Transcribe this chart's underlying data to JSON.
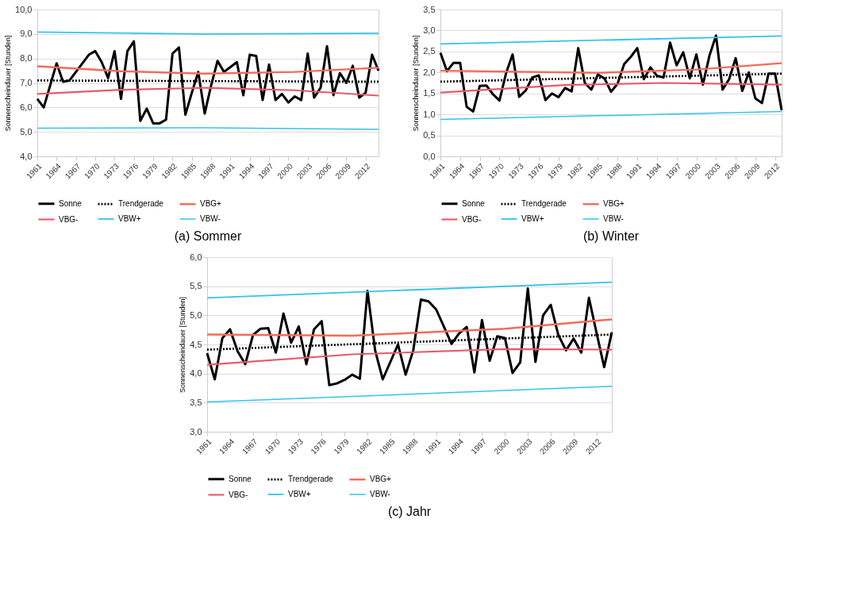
{
  "chart_data": [
    {
      "type": "line",
      "title": "(a) Sommer",
      "ylabel": "Sonnenscheindauer [Stunden]",
      "grid": "y",
      "legend": "bottom",
      "x": [
        1961,
        1962,
        1963,
        1964,
        1965,
        1966,
        1967,
        1968,
        1969,
        1970,
        1971,
        1972,
        1973,
        1974,
        1975,
        1976,
        1977,
        1978,
        1979,
        1980,
        1981,
        1982,
        1983,
        1984,
        1985,
        1986,
        1987,
        1988,
        1989,
        1990,
        1991,
        1992,
        1993,
        1994,
        1995,
        1996,
        1997,
        1998,
        1999,
        2000,
        2001,
        2002,
        2003,
        2004,
        2005,
        2006,
        2007,
        2008,
        2009,
        2010,
        2011,
        2012,
        2013,
        2014
      ],
      "xlim": [
        1961,
        2014
      ],
      "xticks": [
        1961,
        1964,
        1967,
        1970,
        1973,
        1976,
        1979,
        1982,
        1985,
        1988,
        1991,
        1994,
        1997,
        2000,
        2003,
        2006,
        2009,
        2012
      ],
      "ylim": [
        4,
        10
      ],
      "yticks": [
        {
          "value": 4,
          "label": "4,0"
        },
        {
          "value": 5,
          "label": "5,0"
        },
        {
          "value": 6,
          "label": "6,0"
        },
        {
          "value": 7,
          "label": "7,0"
        },
        {
          "value": 8,
          "label": "8,0"
        },
        {
          "value": 9,
          "label": "9,0"
        },
        {
          "value": 10,
          "label": "10,0"
        }
      ],
      "series": [
        {
          "name": "Sonne",
          "color": "#000000",
          "line_style": "solid",
          "values": [
            6.35,
            6.0,
            6.9,
            7.8,
            7.05,
            7.1,
            7.45,
            7.8,
            8.15,
            8.3,
            7.85,
            7.2,
            8.3,
            6.35,
            8.3,
            8.7,
            5.45,
            5.95,
            5.35,
            5.35,
            5.5,
            8.2,
            8.45,
            5.7,
            6.6,
            7.45,
            5.75,
            6.9,
            7.9,
            7.45,
            7.65,
            7.85,
            6.5,
            8.15,
            8.1,
            6.3,
            7.75,
            6.3,
            6.55,
            6.2,
            6.45,
            6.3,
            8.2,
            6.4,
            6.8,
            8.5,
            6.5,
            7.4,
            7.0,
            7.7,
            6.4,
            6.6,
            8.15,
            7.5
          ]
        },
        {
          "name": "Trendgerade",
          "color": "#000000",
          "line_style": "dotted",
          "x": [
            1961,
            2014
          ],
          "values": [
            7.1,
            7.05
          ]
        },
        {
          "name": "VBG+",
          "color": "#f26b5b",
          "line_style": "solid",
          "x": [
            1961,
            1974,
            1987,
            2001,
            2014
          ],
          "values": [
            7.68,
            7.48,
            7.38,
            7.45,
            7.62
          ]
        },
        {
          "name": "VBG-",
          "color": "#e65a6b",
          "line_style": "solid",
          "x": [
            1961,
            1974,
            1987,
            2001,
            2014
          ],
          "values": [
            6.55,
            6.72,
            6.8,
            6.7,
            6.48
          ]
        },
        {
          "name": "VBW+",
          "color": "#33c4e8",
          "line_style": "solid",
          "x": [
            1961,
            1987,
            2014
          ],
          "values": [
            9.08,
            9.0,
            9.03
          ]
        },
        {
          "name": "VBW-",
          "color": "#33c4e8",
          "line_style": "solid",
          "x": [
            1961,
            1987,
            2014
          ],
          "values": [
            5.15,
            5.17,
            5.1
          ]
        }
      ]
    },
    {
      "type": "line",
      "title": "(b) Winter",
      "ylabel": "Sonnenscheindauer [Stunden]",
      "grid": "y",
      "legend": "bottom",
      "x": [
        1961,
        1962,
        1963,
        1964,
        1965,
        1966,
        1967,
        1968,
        1969,
        1970,
        1971,
        1972,
        1973,
        1974,
        1975,
        1976,
        1977,
        1978,
        1979,
        1980,
        1981,
        1982,
        1983,
        1984,
        1985,
        1986,
        1987,
        1988,
        1989,
        1990,
        1991,
        1992,
        1993,
        1994,
        1995,
        1996,
        1997,
        1998,
        1999,
        2000,
        2001,
        2002,
        2003,
        2004,
        2005,
        2006,
        2007,
        2008,
        2009,
        2010,
        2011,
        2012,
        2013
      ],
      "xlim": [
        1961,
        2013
      ],
      "xticks": [
        1961,
        1964,
        1967,
        1970,
        1973,
        1976,
        1979,
        1982,
        1985,
        1988,
        1991,
        1994,
        1997,
        2000,
        2003,
        2006,
        2009,
        2012
      ],
      "ylim": [
        0,
        3.5
      ],
      "yticks": [
        {
          "value": 0,
          "label": "0,0"
        },
        {
          "value": 0.5,
          "label": "0,5"
        },
        {
          "value": 1,
          "label": "1,0"
        },
        {
          "value": 1.5,
          "label": "1,5"
        },
        {
          "value": 2,
          "label": "2,0"
        },
        {
          "value": 2.5,
          "label": "2,5"
        },
        {
          "value": 3,
          "label": "3,0"
        },
        {
          "value": 3.5,
          "label": "3,5"
        }
      ],
      "series": [
        {
          "name": "Sonne",
          "color": "#000000",
          "line_style": "solid",
          "values": [
            2.47,
            2.03,
            2.23,
            2.23,
            1.18,
            1.07,
            1.68,
            1.69,
            1.48,
            1.33,
            1.98,
            2.43,
            1.42,
            1.57,
            1.88,
            1.93,
            1.34,
            1.5,
            1.41,
            1.63,
            1.55,
            2.58,
            1.75,
            1.59,
            1.95,
            1.86,
            1.54,
            1.73,
            2.2,
            2.37,
            2.58,
            1.84,
            2.12,
            1.92,
            1.88,
            2.71,
            2.17,
            2.48,
            1.86,
            2.43,
            1.71,
            2.4,
            2.88,
            1.59,
            1.84,
            2.34,
            1.56,
            2.0,
            1.38,
            1.27,
            1.97,
            1.97,
            1.1
          ]
        },
        {
          "name": "Trendgerade",
          "color": "#000000",
          "line_style": "dotted",
          "x": [
            1961,
            2013
          ],
          "values": [
            1.78,
            1.97
          ]
        },
        {
          "name": "VBG+",
          "color": "#f26b5b",
          "line_style": "solid",
          "x": [
            1961,
            1985,
            2000,
            2013
          ],
          "values": [
            2.04,
            1.99,
            2.07,
            2.22
          ]
        },
        {
          "name": "VBG-",
          "color": "#e65a6b",
          "line_style": "solid",
          "x": [
            1961,
            1980,
            1995,
            2013
          ],
          "values": [
            1.52,
            1.7,
            1.75,
            1.71
          ]
        },
        {
          "name": "VBW+",
          "color": "#33c4e8",
          "line_style": "solid",
          "x": [
            1961,
            2013
          ],
          "values": [
            2.68,
            2.87
          ]
        },
        {
          "name": "VBW-",
          "color": "#33c4e8",
          "line_style": "solid",
          "x": [
            1961,
            2013
          ],
          "values": [
            0.88,
            1.07
          ]
        }
      ]
    },
    {
      "type": "line",
      "title": "(c) Jahr",
      "ylabel": "Sonnenscheindauer [Stunden]",
      "grid": "y",
      "legend": "bottom",
      "x": [
        1961,
        1962,
        1963,
        1964,
        1965,
        1966,
        1967,
        1968,
        1969,
        1970,
        1971,
        1972,
        1973,
        1974,
        1975,
        1976,
        1977,
        1978,
        1979,
        1980,
        1981,
        1982,
        1983,
        1984,
        1985,
        1986,
        1987,
        1988,
        1989,
        1990,
        1991,
        1992,
        1993,
        1994,
        1995,
        1996,
        1997,
        1998,
        1999,
        2000,
        2001,
        2002,
        2003,
        2004,
        2005,
        2006,
        2007,
        2008,
        2009,
        2010,
        2011,
        2012,
        2013,
        2014
      ],
      "xlim": [
        1961,
        2014
      ],
      "xticks": [
        1961,
        1964,
        1967,
        1970,
        1973,
        1976,
        1979,
        1982,
        1985,
        1988,
        1991,
        1994,
        1997,
        2000,
        2003,
        2006,
        2009,
        2012
      ],
      "ylim": [
        3,
        6
      ],
      "yticks": [
        {
          "value": 3,
          "label": "3,0"
        },
        {
          "value": 3.5,
          "label": "3,5"
        },
        {
          "value": 4,
          "label": "4,0"
        },
        {
          "value": 4.5,
          "label": "4,5"
        },
        {
          "value": 5,
          "label": "5,0"
        },
        {
          "value": 5.5,
          "label": "5,5"
        },
        {
          "value": 6,
          "label": "6,0"
        }
      ],
      "series": [
        {
          "name": "Sonne",
          "color": "#000000",
          "line_style": "solid",
          "values": [
            4.35,
            3.9,
            4.61,
            4.76,
            4.38,
            4.16,
            4.66,
            4.77,
            4.78,
            4.36,
            5.03,
            4.53,
            4.81,
            4.16,
            4.76,
            4.9,
            3.8,
            3.83,
            3.89,
            3.98,
            3.91,
            5.42,
            4.4,
            3.9,
            4.2,
            4.5,
            3.98,
            4.4,
            5.27,
            5.24,
            5.1,
            4.81,
            4.51,
            4.69,
            4.8,
            4.02,
            4.92,
            4.22,
            4.64,
            4.61,
            4.01,
            4.19,
            5.46,
            4.2,
            5.0,
            5.18,
            4.66,
            4.4,
            4.6,
            4.36,
            5.3,
            4.7,
            4.11,
            4.71
          ]
        },
        {
          "name": "Trendgerade",
          "color": "#000000",
          "line_style": "dotted",
          "x": [
            1961,
            2014
          ],
          "values": [
            4.41,
            4.67
          ]
        },
        {
          "name": "VBG+",
          "color": "#f26b5b",
          "line_style": "solid",
          "x": [
            1961,
            1980,
            2000,
            2014
          ],
          "values": [
            4.67,
            4.65,
            4.77,
            4.93
          ]
        },
        {
          "name": "VBG-",
          "color": "#e65a6b",
          "line_style": "solid",
          "x": [
            1961,
            1980,
            2000,
            2014
          ],
          "values": [
            4.15,
            4.33,
            4.42,
            4.41
          ]
        },
        {
          "name": "VBW+",
          "color": "#33c4e8",
          "line_style": "solid",
          "x": [
            1961,
            2014
          ],
          "values": [
            5.3,
            5.57
          ]
        },
        {
          "name": "VBW-",
          "color": "#33c4e8",
          "line_style": "solid",
          "x": [
            1961,
            2014
          ],
          "values": [
            3.51,
            3.78
          ]
        }
      ]
    }
  ]
}
